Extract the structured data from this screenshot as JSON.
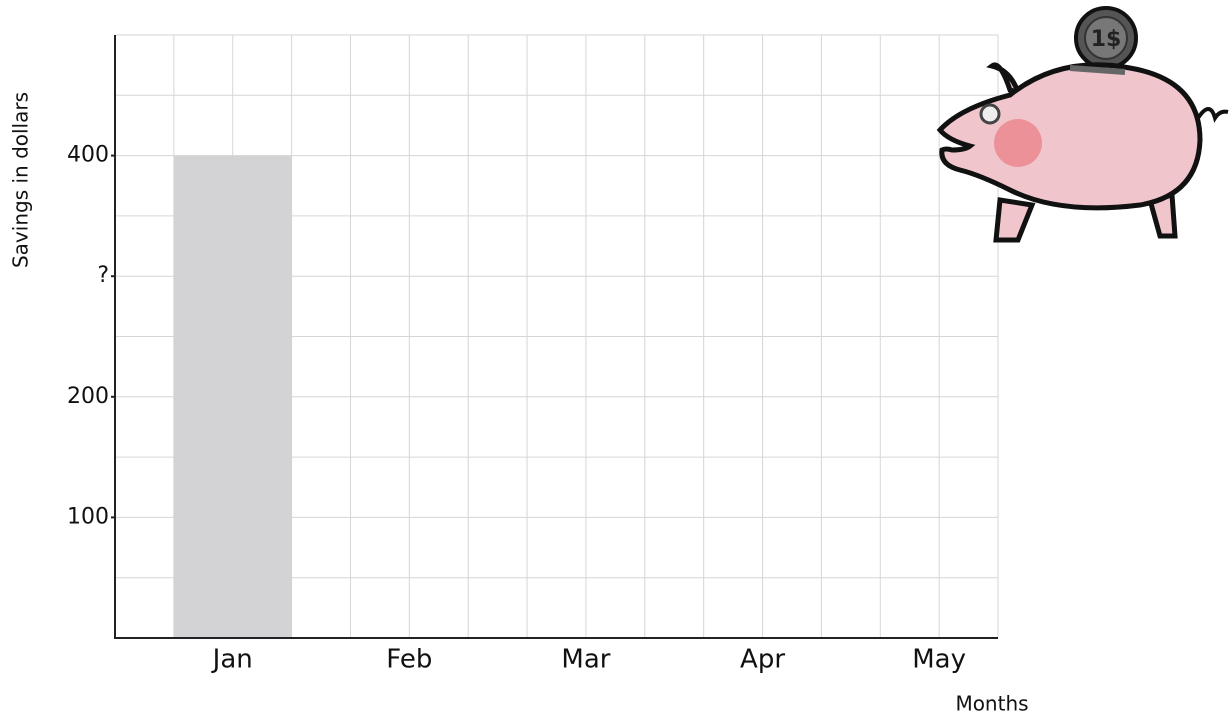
{
  "chart_data": {
    "type": "bar",
    "y_label": "Savings in dollars",
    "x_label": "Months",
    "categories": [
      "Jan",
      "Feb",
      "Mar",
      "Apr",
      "May"
    ],
    "values": [
      400,
      null,
      null,
      null,
      null
    ],
    "color": "#d3d3d5",
    "ylim": [
      0,
      500
    ],
    "yticks": [
      100,
      200,
      {
        "value": 300,
        "label": "?"
      },
      400
    ],
    "grid_lines": [
      50,
      100,
      150,
      200,
      250,
      300,
      350,
      400,
      450,
      500
    ],
    "grid": true,
    "icon_label": "1$"
  }
}
